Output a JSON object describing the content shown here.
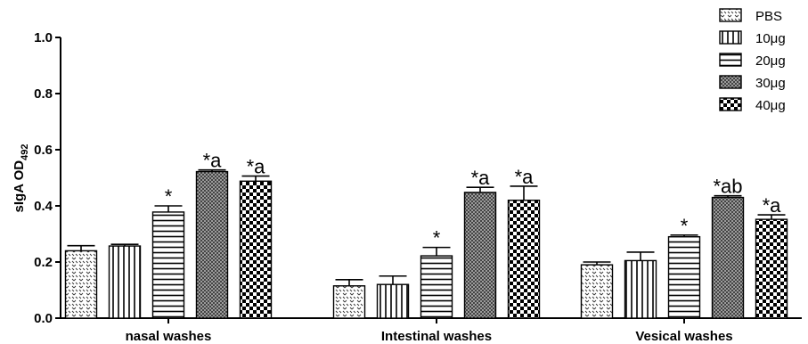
{
  "chart_data": {
    "type": "bar",
    "ylabel": "sIgA OD",
    "ylabel_subscript": "492",
    "ylim": [
      0,
      1.0
    ],
    "yticks": [
      "0.0",
      "0.2",
      "0.4",
      "0.6",
      "0.8",
      "1.0"
    ],
    "grid": false,
    "legend_position": "top-right",
    "categories": [
      "nasal washes",
      "Intestinal washes",
      "Vesical washes"
    ],
    "series": [
      {
        "name": "PBS",
        "pattern": "dots",
        "values": [
          0.24,
          0.115,
          0.19
        ],
        "errors": [
          0.018,
          0.022,
          0.01
        ]
      },
      {
        "name": "10μg",
        "pattern": "vertical-lines",
        "values": [
          0.257,
          0.12,
          0.205
        ],
        "errors": [
          0.006,
          0.03,
          0.03
        ]
      },
      {
        "name": "20μg",
        "pattern": "horizontal-lines",
        "values": [
          0.378,
          0.222,
          0.29
        ],
        "errors": [
          0.022,
          0.03,
          0.006
        ]
      },
      {
        "name": "30μg",
        "pattern": "dense-crosshatch",
        "values": [
          0.522,
          0.448,
          0.43
        ],
        "errors": [
          0.006,
          0.018,
          0.006
        ]
      },
      {
        "name": "40μg",
        "pattern": "checkerboard",
        "values": [
          0.488,
          0.42,
          0.352
        ],
        "errors": [
          0.018,
          0.05,
          0.016
        ]
      }
    ],
    "annotations": [
      [
        "",
        "",
        "*",
        "*a",
        "*a"
      ],
      [
        "",
        "",
        "*",
        "*a",
        "*a"
      ],
      [
        "",
        "",
        "*",
        "*ab",
        "*a"
      ]
    ]
  }
}
